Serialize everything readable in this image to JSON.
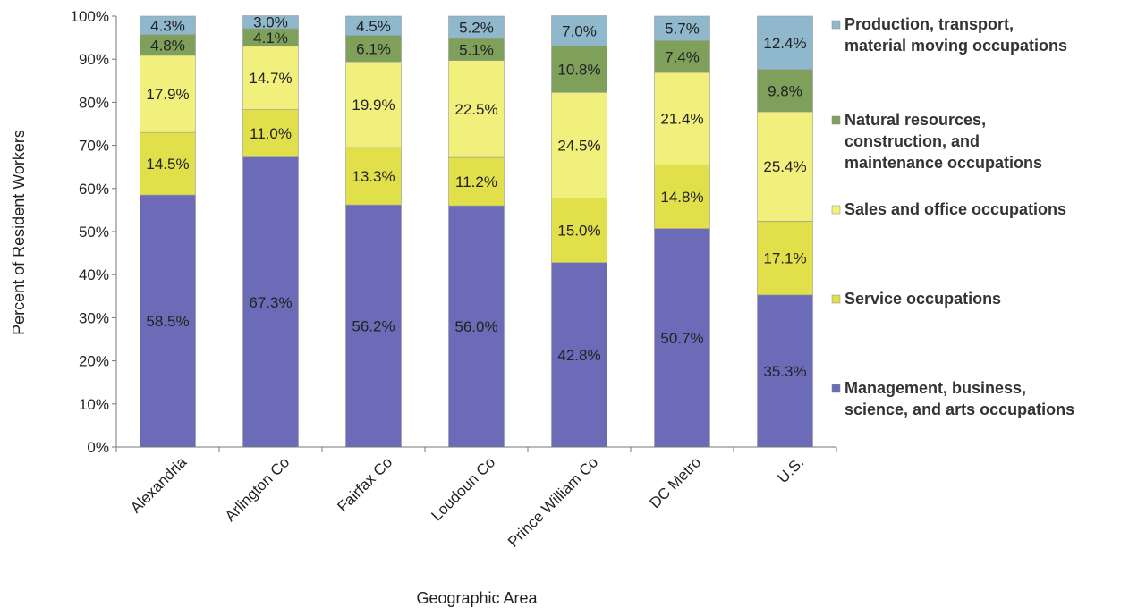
{
  "chart_data": {
    "type": "bar",
    "stacked": true,
    "xlabel": "Geographic Area",
    "ylabel": "Percent of Resident Workers",
    "ylim": [
      0,
      100
    ],
    "y_ticks": [
      "0%",
      "10%",
      "20%",
      "30%",
      "40%",
      "50%",
      "60%",
      "70%",
      "80%",
      "90%",
      "100%"
    ],
    "grid": false,
    "legend_position": "right",
    "categories": [
      "Alexandria",
      "Arlington Co",
      "Fairfax Co",
      "Loudoun Co",
      "Prince William Co",
      "DC Metro",
      "U.S."
    ],
    "series": [
      {
        "name": "Management, business, science, and arts occupations",
        "legend_lines": [
          "Management, business,",
          "science, and arts occupations"
        ],
        "color": "#6b6bb8",
        "values": [
          58.5,
          67.3,
          56.2,
          56.0,
          42.8,
          50.7,
          35.3
        ],
        "labels": [
          "58.5%",
          "67.3%",
          "56.2%",
          "56.0%",
          "42.8%",
          "50.7%",
          "35.3%"
        ]
      },
      {
        "name": "Service occupations",
        "legend_lines": [
          "Service occupations"
        ],
        "color": "#e2e04a",
        "values": [
          14.5,
          11.0,
          13.3,
          11.2,
          15.0,
          14.8,
          17.1
        ],
        "labels": [
          "14.5%",
          "11.0%",
          "13.3%",
          "11.2%",
          "15.0%",
          "14.8%",
          "17.1%"
        ]
      },
      {
        "name": "Sales and office occupations",
        "legend_lines": [
          "Sales and office occupations"
        ],
        "color": "#f2f07c",
        "values": [
          17.9,
          14.7,
          19.9,
          22.5,
          24.5,
          21.4,
          25.4
        ],
        "labels": [
          "17.9%",
          "14.7%",
          "19.9%",
          "22.5%",
          "24.5%",
          "21.4%",
          "25.4%"
        ]
      },
      {
        "name": "Natural resources, construction, and maintenance occupations",
        "legend_lines": [
          "Natural resources,",
          "construction, and",
          "maintenance occupations"
        ],
        "color": "#7fa05a",
        "values": [
          4.8,
          4.1,
          6.1,
          5.1,
          10.8,
          7.4,
          9.8
        ],
        "labels": [
          "4.8%",
          "4.1%",
          "6.1%",
          "5.1%",
          "10.8%",
          "7.4%",
          "9.8%"
        ]
      },
      {
        "name": "Production, transport, material moving occupations",
        "legend_lines": [
          "Production, transport,",
          "material moving occupations"
        ],
        "color": "#8fb8cc",
        "values": [
          4.3,
          3.0,
          4.5,
          5.2,
          7.0,
          5.7,
          12.4
        ],
        "labels": [
          "4.3%",
          "3.0%",
          "4.5%",
          "5.2%",
          "7.0%",
          "5.7%",
          "12.4%"
        ]
      }
    ],
    "legend_order": [
      4,
      3,
      2,
      1,
      0
    ]
  }
}
